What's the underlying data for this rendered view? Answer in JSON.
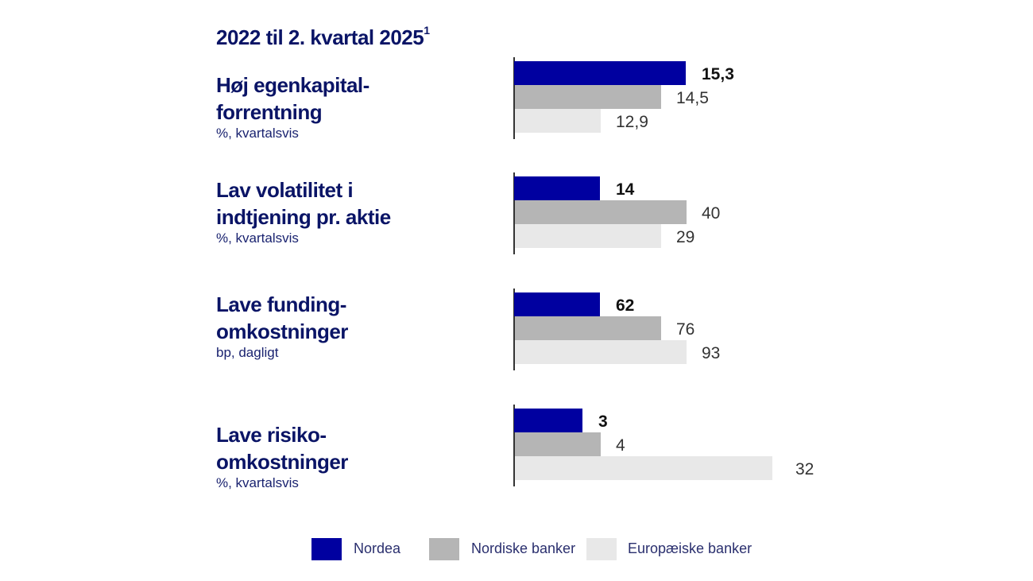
{
  "chart_data": {
    "type": "bar",
    "orientation": "horizontal",
    "title": "2022 til 2. kvartal 2025",
    "title_footnote": "1",
    "series_names": [
      "Nordea",
      "Nordiske banker",
      "Europæiske banker"
    ],
    "colors": {
      "Nordea": "#0000a0",
      "Nordiske banker": "#b5b5b5",
      "Europæiske banker": "#e8e8e8"
    },
    "groups": [
      {
        "title_lines": [
          "Høj egenkapital-",
          "forrentning"
        ],
        "unit": "%, kvartalsvis",
        "values": [
          15.3,
          14.5,
          12.9
        ],
        "labels": [
          "15,3",
          "14,5",
          "12,9"
        ]
      },
      {
        "title_lines": [
          "Lav volatilitet i",
          "indtjening pr. aktie"
        ],
        "unit": "%, kvartalsvis",
        "values": [
          14,
          40,
          29
        ],
        "labels": [
          "14",
          "40",
          "29"
        ]
      },
      {
        "title_lines": [
          "Lave funding-",
          "omkostninger"
        ],
        "unit": "bp, dagligt",
        "values": [
          62,
          76,
          93
        ],
        "labels": [
          "62",
          "76",
          "93"
        ]
      },
      {
        "title_lines": [
          "Lave risiko-",
          "omkostninger"
        ],
        "unit": "%, kvartalsvis",
        "values": [
          3,
          4,
          32
        ],
        "labels": [
          "3",
          "4",
          "32"
        ]
      }
    ],
    "legend": [
      "Nordea",
      "Nordiske banker",
      "Europæiske banker"
    ],
    "legend_position": "bottom",
    "grid": false
  }
}
